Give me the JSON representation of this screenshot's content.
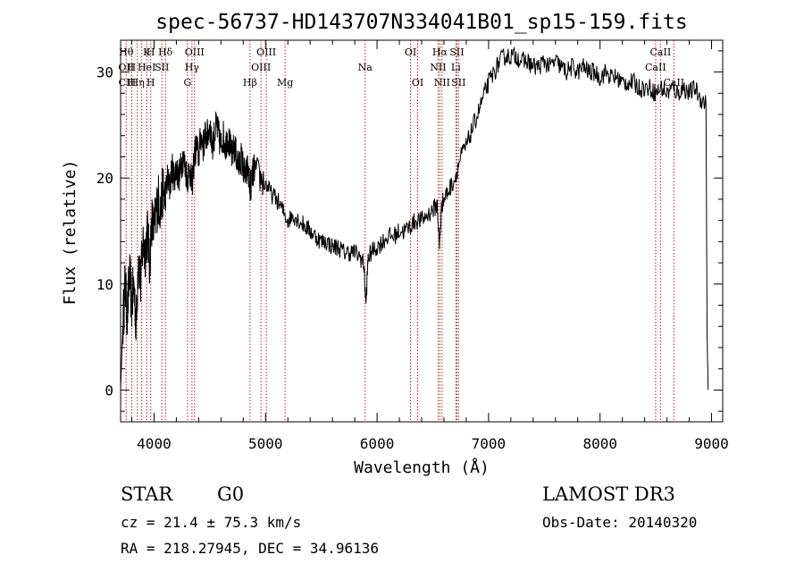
{
  "chart_data": {
    "type": "line",
    "title": "spec-56737-HD143707N334041B01_sp15-159.fits",
    "xlabel": "Wavelength (Å)",
    "ylabel": "Flux (relative)",
    "xlim": [
      3700,
      9100
    ],
    "ylim": [
      -3,
      33
    ],
    "x_ticks": [
      4000,
      5000,
      6000,
      7000,
      8000,
      9000
    ],
    "y_ticks": [
      0,
      10,
      20,
      30
    ],
    "grid": false,
    "series": [
      {
        "points": [
          [
            3700,
            0
          ],
          [
            3720,
            6
          ],
          [
            3740,
            10
          ],
          [
            3760,
            7
          ],
          [
            3780,
            11
          ],
          [
            3800,
            8
          ],
          [
            3820,
            10
          ],
          [
            3840,
            6
          ],
          [
            3860,
            13
          ],
          [
            3880,
            10
          ],
          [
            3900,
            14
          ],
          [
            3920,
            13
          ],
          [
            3940,
            15
          ],
          [
            3960,
            12
          ],
          [
            3980,
            16
          ],
          [
            4000,
            15
          ],
          [
            4020,
            17
          ],
          [
            4040,
            18
          ],
          [
            4060,
            17
          ],
          [
            4080,
            19
          ],
          [
            4100,
            18
          ],
          [
            4120,
            20
          ],
          [
            4140,
            19
          ],
          [
            4160,
            21
          ],
          [
            4180,
            20
          ],
          [
            4200,
            21
          ],
          [
            4220,
            20
          ],
          [
            4240,
            21
          ],
          [
            4260,
            22
          ],
          [
            4280,
            21
          ],
          [
            4300,
            20
          ],
          [
            4320,
            21
          ],
          [
            4340,
            19
          ],
          [
            4360,
            22
          ],
          [
            4380,
            23
          ],
          [
            4400,
            22
          ],
          [
            4420,
            24
          ],
          [
            4440,
            23
          ],
          [
            4460,
            24
          ],
          [
            4480,
            24
          ],
          [
            4500,
            25
          ],
          [
            4520,
            23
          ],
          [
            4540,
            24
          ],
          [
            4560,
            25
          ],
          [
            4580,
            24
          ],
          [
            4600,
            23
          ],
          [
            4620,
            24
          ],
          [
            4640,
            23
          ],
          [
            4660,
            24
          ],
          [
            4680,
            23
          ],
          [
            4700,
            22
          ],
          [
            4720,
            23
          ],
          [
            4740,
            22
          ],
          [
            4760,
            21
          ],
          [
            4780,
            22
          ],
          [
            4800,
            21
          ],
          [
            4820,
            20
          ],
          [
            4840,
            21
          ],
          [
            4860,
            19
          ],
          [
            4880,
            20
          ],
          [
            4900,
            21
          ],
          [
            4950,
            20
          ],
          [
            5000,
            19.5
          ],
          [
            5050,
            18.5
          ],
          [
            5100,
            18
          ],
          [
            5150,
            17
          ],
          [
            5200,
            16
          ],
          [
            5250,
            16.5
          ],
          [
            5300,
            16
          ],
          [
            5350,
            15.5
          ],
          [
            5400,
            15
          ],
          [
            5450,
            14.5
          ],
          [
            5500,
            14
          ],
          [
            5550,
            14
          ],
          [
            5600,
            13.5
          ],
          [
            5650,
            13.5
          ],
          [
            5700,
            13
          ],
          [
            5750,
            13
          ],
          [
            5800,
            13
          ],
          [
            5850,
            12.5
          ],
          [
            5880,
            12
          ],
          [
            5900,
            8
          ],
          [
            5920,
            12.5
          ],
          [
            5950,
            13
          ],
          [
            6000,
            13.5
          ],
          [
            6050,
            14
          ],
          [
            6100,
            14.5
          ],
          [
            6150,
            14.5
          ],
          [
            6200,
            15
          ],
          [
            6250,
            15
          ],
          [
            6300,
            15.5
          ],
          [
            6350,
            16
          ],
          [
            6400,
            16
          ],
          [
            6450,
            16.5
          ],
          [
            6500,
            17
          ],
          [
            6540,
            17.5
          ],
          [
            6560,
            13.5
          ],
          [
            6580,
            17.5
          ],
          [
            6600,
            18
          ],
          [
            6650,
            19
          ],
          [
            6700,
            20
          ],
          [
            6750,
            22
          ],
          [
            6800,
            23
          ],
          [
            6850,
            24.5
          ],
          [
            6900,
            26
          ],
          [
            6950,
            27.5
          ],
          [
            7000,
            29
          ],
          [
            7050,
            30
          ],
          [
            7100,
            31
          ],
          [
            7150,
            31.5
          ],
          [
            7200,
            31.5
          ],
          [
            7250,
            31.5
          ],
          [
            7300,
            31
          ],
          [
            7350,
            31
          ],
          [
            7400,
            30.5
          ],
          [
            7450,
            30.5
          ],
          [
            7500,
            31
          ],
          [
            7550,
            30.5
          ],
          [
            7600,
            31
          ],
          [
            7650,
            30.5
          ],
          [
            7700,
            30
          ],
          [
            7750,
            30.5
          ],
          [
            7800,
            30
          ],
          [
            7850,
            30.5
          ],
          [
            7900,
            30
          ],
          [
            7950,
            30
          ],
          [
            8000,
            29.5
          ],
          [
            8050,
            30
          ],
          [
            8100,
            29.5
          ],
          [
            8150,
            29.5
          ],
          [
            8200,
            29
          ],
          [
            8250,
            29
          ],
          [
            8300,
            29
          ],
          [
            8350,
            28.5
          ],
          [
            8400,
            28.5
          ],
          [
            8450,
            28.5
          ],
          [
            8500,
            28
          ],
          [
            8550,
            28.5
          ],
          [
            8600,
            28
          ],
          [
            8650,
            28.5
          ],
          [
            8700,
            28
          ],
          [
            8750,
            28.5
          ],
          [
            8800,
            28
          ],
          [
            8850,
            28.5
          ],
          [
            8900,
            27.5
          ],
          [
            8950,
            27
          ],
          [
            8960,
            5
          ],
          [
            8970,
            0
          ]
        ]
      }
    ],
    "lines": [
      {
        "x": 3750,
        "labels": [
          "Hθ",
          "OII",
          "CII"
        ]
      },
      {
        "x": 3800,
        "labels": [
          "",
          "H",
          "H"
        ]
      },
      {
        "x": 3850,
        "labels": [
          "",
          "",
          "Hη"
        ]
      },
      {
        "x": 3889,
        "labels": [
          "",
          "",
          ""
        ]
      },
      {
        "x": 3934,
        "labels": [
          "K",
          "HeI",
          ""
        ]
      },
      {
        "x": 3970,
        "labels": [
          "H",
          "",
          "H"
        ]
      },
      {
        "x": 4070,
        "labels": [
          "",
          "SII",
          ""
        ]
      },
      {
        "x": 4102,
        "labels": [
          "Hδ",
          "",
          ""
        ]
      },
      {
        "x": 4300,
        "labels": [
          "",
          "",
          "G"
        ]
      },
      {
        "x": 4340,
        "labels": [
          "",
          "Hγ",
          ""
        ]
      },
      {
        "x": 4363,
        "labels": [
          "OIII",
          "",
          ""
        ]
      },
      {
        "x": 4861,
        "labels": [
          "",
          "",
          "Hβ"
        ]
      },
      {
        "x": 4959,
        "labels": [
          "",
          "OIII",
          ""
        ]
      },
      {
        "x": 5007,
        "labels": [
          "OIII",
          "",
          ""
        ]
      },
      {
        "x": 5175,
        "labels": [
          "",
          "",
          "Mg"
        ]
      },
      {
        "x": 5893,
        "labels": [
          "",
          "Na",
          ""
        ]
      },
      {
        "x": 6300,
        "labels": [
          "OI",
          "",
          ""
        ]
      },
      {
        "x": 6364,
        "labels": [
          "",
          "",
          "OI"
        ]
      },
      {
        "x": 6548,
        "labels": [
          "",
          "NII",
          ""
        ]
      },
      {
        "x": 6563,
        "labels": [
          "Hα",
          "",
          ""
        ]
      },
      {
        "x": 6583,
        "labels": [
          "",
          "",
          "NII"
        ]
      },
      {
        "x": 6707,
        "labels": [
          "",
          "Li",
          ""
        ]
      },
      {
        "x": 6716,
        "labels": [
          "SII",
          "",
          ""
        ]
      },
      {
        "x": 6731,
        "labels": [
          "",
          "",
          "SII"
        ]
      },
      {
        "x": 8498,
        "labels": [
          "",
          "CaII",
          ""
        ]
      },
      {
        "x": 8542,
        "labels": [
          "CaII",
          "",
          ""
        ]
      },
      {
        "x": 8662,
        "labels": [
          "",
          "",
          "CaII"
        ]
      }
    ]
  },
  "info": {
    "class": "STAR",
    "subclass": "G0",
    "survey": "LAMOST DR3",
    "cz": "cz = 21.4 ± 75.3 km/s",
    "obs_date": "Obs-Date: 20140320",
    "coords": "RA = 218.27945, DEC =  34.96136"
  },
  "colors": {
    "line": "#000000",
    "markers": "#b22222"
  }
}
